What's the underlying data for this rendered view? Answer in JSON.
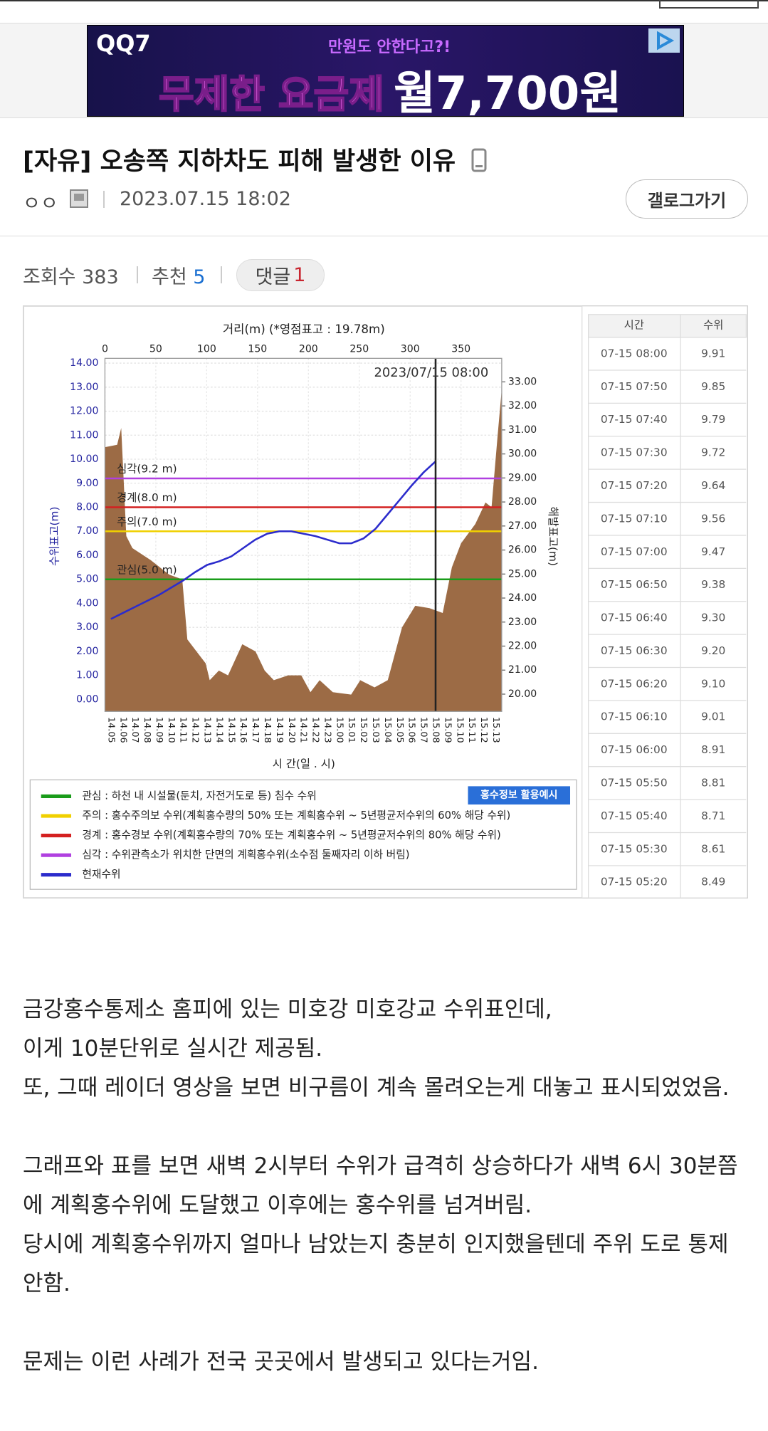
{
  "ad": {
    "brand": "QQ7",
    "tagline": "만원도 안한다고?!",
    "headline": "무제한 요금제",
    "price": "월7,700원"
  },
  "post": {
    "title": "[자유] 오송쪽 지하차도 피해 발생한 이유",
    "author": "ㅇㅇ",
    "date": "2023.07.15 18:02",
    "gallog_button": "갤로그가기",
    "views_label": "조회수",
    "views": 383,
    "recommend_label": "추천",
    "recommend": 5,
    "comments_label": "댓글",
    "comments": 1
  },
  "chart": {
    "x_axis_title": "거리(m) (*영점표고 : 19.78m)",
    "time_axis_title": "시 간(일 . 시)",
    "y_axis_title": "수위표고(m)",
    "y2_axis_title": "해발표고(m)",
    "timestamp": "2023/07/15 08:00",
    "xlim": [
      0,
      390
    ],
    "xticks": [
      0,
      50,
      100,
      150,
      200,
      250,
      300,
      350
    ],
    "ylim": [
      -0.5,
      14.2
    ],
    "yticks": [
      {
        "value": 0,
        "label": "0.00"
      },
      {
        "value": 1,
        "label": "1.00"
      },
      {
        "value": 2,
        "label": "2.00"
      },
      {
        "value": 3,
        "label": "3.00"
      },
      {
        "value": 4,
        "label": "4.00"
      },
      {
        "value": 5,
        "label": "5.00"
      },
      {
        "value": 6,
        "label": "6.00"
      },
      {
        "value": 7,
        "label": "7.00"
      },
      {
        "value": 8,
        "label": "8.00"
      },
      {
        "value": 9,
        "label": "9.00"
      },
      {
        "value": 10,
        "label": "10.00"
      },
      {
        "value": 11,
        "label": "11.00"
      },
      {
        "value": 12,
        "label": "12.00"
      },
      {
        "value": 13,
        "label": "13.00"
      },
      {
        "value": 14,
        "label": "14.00"
      }
    ],
    "y2lim": [
      19.28,
      33.98
    ],
    "y2ticks": [
      {
        "value": 20,
        "label": "20.00"
      },
      {
        "value": 21,
        "label": "21.00"
      },
      {
        "value": 22,
        "label": "22.00"
      },
      {
        "value": 23,
        "label": "23.00"
      },
      {
        "value": 24,
        "label": "24.00"
      },
      {
        "value": 25,
        "label": "25.00"
      },
      {
        "value": 26,
        "label": "26.00"
      },
      {
        "value": 27,
        "label": "27.00"
      },
      {
        "value": 28,
        "label": "28.00"
      },
      {
        "value": 29,
        "label": "29.00"
      },
      {
        "value": 30,
        "label": "30.00"
      },
      {
        "value": 31,
        "label": "31.00"
      },
      {
        "value": 32,
        "label": "32.00"
      },
      {
        "value": 33,
        "label": "33.00"
      }
    ],
    "grid": true,
    "categories": [
      "14.05",
      "14.06",
      "14.07",
      "14.08",
      "14.09",
      "14.10",
      "14.11",
      "14.12",
      "14.13",
      "14.14",
      "14.15",
      "14.16",
      "14.17",
      "14.18",
      "14.19",
      "14.20",
      "14.21",
      "14.22",
      "14.23",
      "15.00",
      "15.01",
      "15.02",
      "15.03",
      "15.04",
      "15.05",
      "15.06",
      "15.07",
      "15.08",
      "15.09",
      "15.10",
      "15.11",
      "15.12",
      "15.13"
    ],
    "series": {
      "name": "현재수위",
      "color": "#2c2ccc",
      "values": [
        3.35,
        3.6,
        3.85,
        4.1,
        4.35,
        4.65,
        4.95,
        5.3,
        5.6,
        5.75,
        5.95,
        6.3,
        6.65,
        6.9,
        7.0,
        7.0,
        6.9,
        6.8,
        6.65,
        6.5,
        6.5,
        6.7,
        7.1,
        7.7,
        8.3,
        8.9,
        9.45,
        9.91,
        null,
        null,
        null,
        null,
        null
      ]
    },
    "terrain": {
      "color": "#9c6b45",
      "x": [
        0,
        12,
        16,
        21,
        27,
        45,
        63,
        76,
        81,
        90,
        99,
        103,
        112,
        121,
        135,
        148,
        157,
        166,
        180,
        193,
        202,
        211,
        224,
        242,
        251,
        265,
        278,
        292,
        305,
        319,
        332,
        341,
        350,
        364,
        374,
        380,
        386,
        390
      ],
      "values": [
        10.5,
        10.6,
        11.3,
        6.8,
        6.3,
        5.8,
        5.2,
        5.0,
        2.5,
        2.0,
        1.5,
        0.8,
        1.2,
        1.0,
        2.3,
        2.0,
        1.2,
        0.8,
        1.0,
        1.0,
        0.3,
        0.8,
        0.3,
        0.2,
        0.8,
        0.5,
        0.8,
        3.0,
        3.9,
        3.8,
        3.6,
        5.5,
        6.5,
        7.3,
        8.2,
        8.0,
        11.0,
        12.9
      ]
    },
    "thresholds": [
      {
        "label": "관심(5.0 m)",
        "value": 5,
        "color": "#1a9c1a"
      },
      {
        "label": "주의(7.0 m)",
        "value": 7,
        "color": "#f0d000"
      },
      {
        "label": "경계(8.0 m)",
        "value": 8,
        "color": "#d42020"
      },
      {
        "label": "심각(9.2 m)",
        "value": 9.2,
        "color": "#b040e0"
      }
    ],
    "legend": {
      "button": "홍수정보 활용예시",
      "items": [
        "관심 : 하천 내 시설물(둔치, 자전거도로 등) 침수 수위",
        "주의 : 홍수주의보 수위(계획홍수량의 50% 또는 계획홍수위 ~ 5년평균저수위의 60% 해당 수위)",
        "경계 : 홍수경보 수위(계획홍수량의 70% 또는 계획홍수위 ~ 5년평균저수위의 80% 해당 수위)",
        "심각 : 수위관측소가 위치한 단면의 계획홍수위(소수점 둘째자리 이하 버림)"
      ]
    }
  },
  "table": {
    "header": [
      "시간",
      "수위"
    ],
    "rows": [
      [
        "07-15 08:00",
        "9.91"
      ],
      [
        "07-15 07:50",
        "9.85"
      ],
      [
        "07-15 07:40",
        "9.79"
      ],
      [
        "07-15 07:30",
        "9.72"
      ],
      [
        "07-15 07:20",
        "9.64"
      ],
      [
        "07-15 07:10",
        "9.56"
      ],
      [
        "07-15 07:00",
        "9.47"
      ],
      [
        "07-15 06:50",
        "9.38"
      ],
      [
        "07-15 06:40",
        "9.30"
      ],
      [
        "07-15 06:30",
        "9.20"
      ],
      [
        "07-15 06:20",
        "9.10"
      ],
      [
        "07-15 06:10",
        "9.01"
      ],
      [
        "07-15 06:00",
        "8.91"
      ],
      [
        "07-15 05:50",
        "8.81"
      ],
      [
        "07-15 05:40",
        "8.71"
      ],
      [
        "07-15 05:30",
        "8.61"
      ],
      [
        "07-15 05:20",
        "8.49"
      ]
    ]
  },
  "body": {
    "paragraphs": [
      [
        "금강홍수통제소 홈피에 있는 미호강 미호강교 수위표인데,",
        "이게 10분단위로 실시간 제공됨.",
        "또, 그때 레이더 영상을 보면 비구름이 계속 몰려오는게 대놓고 표시되었었음."
      ],
      [
        "그래프와 표를 보면 새벽 2시부터 수위가 급격히 상승하다가 새벽 6시 30분쯤에 계획홍수위에 도달했고 이후에는 홍수위를 넘겨버림.",
        "당시에 계획홍수위까지 얼마나 남았는지 충분히 인지했을텐데 주위 도로 통제 안함."
      ],
      [
        "문제는 이런 사례가 전국 곳곳에서 발생되고 있다는거임."
      ]
    ]
  }
}
